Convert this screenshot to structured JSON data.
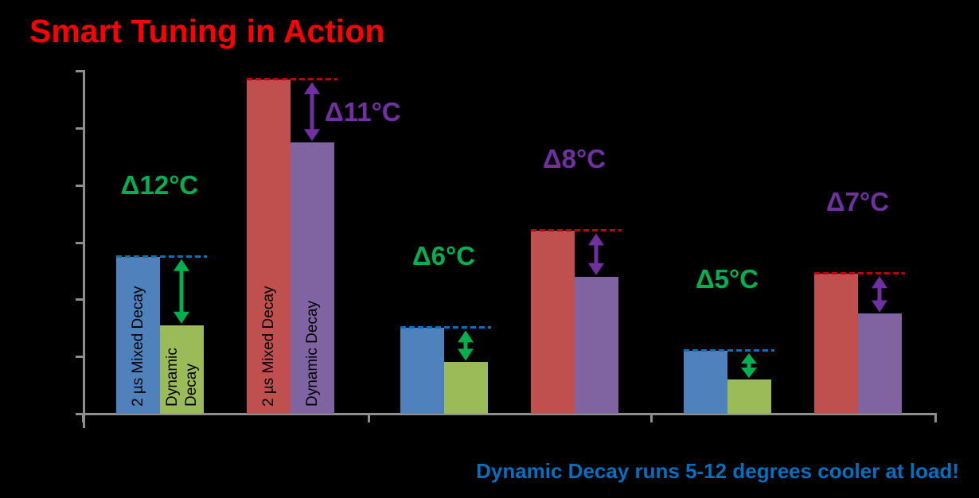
{
  "title": "Smart Tuning in Action",
  "footer": "Dynamic Decay runs 5-12 degrees cooler at load!",
  "colors": {
    "background": "#000000",
    "title": "#FF0000",
    "footer": "#0070C0",
    "axis": "#8E8E8E",
    "bar_blue": "#4F81BD",
    "bar_green": "#9BBB59",
    "bar_red": "#C0504D",
    "bar_purple": "#8064A2",
    "dash_blue": "#0070C0",
    "dash_red": "#C00000",
    "delta_green": "#00B050",
    "delta_purple": "#7030A0"
  },
  "chart_data": {
    "type": "bar",
    "title": "Smart Tuning in Action",
    "footer_annotation": "Dynamic Decay runs 5-12 degrees cooler at load!",
    "xlabel": "",
    "ylabel": "",
    "axis_tick_labels": "none (unlabeled ticks)",
    "y_axis_divisions": 6,
    "estimated_unit": "degrees C (1 tick division ≈ 10°C, values estimated)",
    "ylim": [
      0,
      60
    ],
    "grid": false,
    "legend": "none",
    "categories": [
      "",
      "",
      ""
    ],
    "series_note": "each category holds two pairs: blue/green pair and red/purple pair; each pair = 2 µs Mixed Decay vs Dynamic Decay",
    "groups": [
      {
        "category_index": 0,
        "variant": "blue-green",
        "dash_color": "#0070C0",
        "bars": [
          {
            "name": "2 µs Mixed Decay",
            "color": "#4F81BD",
            "value_est": 27.5,
            "label_lines": [
              "2 µs Mixed Decay"
            ]
          },
          {
            "name": "Dynamic Decay",
            "color": "#9BBB59",
            "value_est": 15.5,
            "label_lines": [
              "Dynamic",
              "Decay"
            ]
          }
        ],
        "delta": {
          "text": "Δ12°C",
          "value_c": 12,
          "color": "#00B050"
        }
      },
      {
        "category_index": 0,
        "variant": "red-purple",
        "dash_color": "#C00000",
        "bars": [
          {
            "name": "2 µs Mixed Decay",
            "color": "#C0504D",
            "value_est": 58.5,
            "label_lines": [
              "2 µs Mixed Decay"
            ]
          },
          {
            "name": "Dynamic Decay",
            "color": "#8064A2",
            "value_est": 47.5,
            "label_lines": [
              "Dynamic Decay"
            ]
          }
        ],
        "delta": {
          "text": "Δ11°C",
          "value_c": 11,
          "color": "#7030A0"
        }
      },
      {
        "category_index": 1,
        "variant": "blue-green",
        "dash_color": "#0070C0",
        "bars": [
          {
            "name": "2 µs Mixed Decay",
            "color": "#4F81BD",
            "value_est": 15,
            "label_lines": []
          },
          {
            "name": "Dynamic Decay",
            "color": "#9BBB59",
            "value_est": 9,
            "label_lines": []
          }
        ],
        "delta": {
          "text": "Δ6°C",
          "value_c": 6,
          "color": "#00B050"
        }
      },
      {
        "category_index": 1,
        "variant": "red-purple",
        "dash_color": "#C00000",
        "bars": [
          {
            "name": "2 µs Mixed Decay",
            "color": "#C0504D",
            "value_est": 32,
            "label_lines": []
          },
          {
            "name": "Dynamic Decay",
            "color": "#8064A2",
            "value_est": 24,
            "label_lines": []
          }
        ],
        "delta": {
          "text": "Δ8°C",
          "value_c": 8,
          "color": "#7030A0"
        }
      },
      {
        "category_index": 2,
        "variant": "blue-green",
        "dash_color": "#0070C0",
        "bars": [
          {
            "name": "2 µs Mixed Decay",
            "color": "#4F81BD",
            "value_est": 11,
            "label_lines": []
          },
          {
            "name": "Dynamic Decay",
            "color": "#9BBB59",
            "value_est": 6,
            "label_lines": []
          }
        ],
        "delta": {
          "text": "Δ5°C",
          "value_c": 5,
          "color": "#00B050"
        }
      },
      {
        "category_index": 2,
        "variant": "red-purple",
        "dash_color": "#C00000",
        "bars": [
          {
            "name": "2 µs Mixed Decay",
            "color": "#C0504D",
            "value_est": 24.5,
            "label_lines": []
          },
          {
            "name": "Dynamic Decay",
            "color": "#8064A2",
            "value_est": 17.5,
            "label_lines": []
          }
        ],
        "delta": {
          "text": "Δ7°C",
          "value_c": 7,
          "color": "#7030A0"
        }
      }
    ]
  }
}
